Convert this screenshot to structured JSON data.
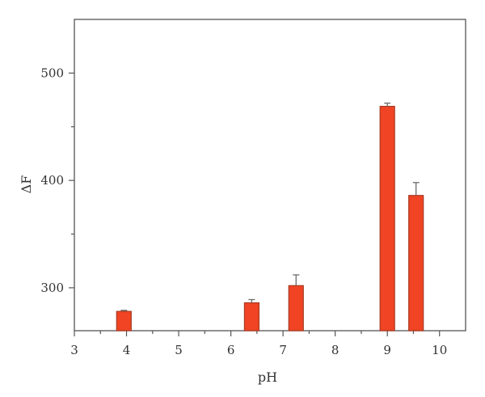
{
  "chart_data": {
    "type": "bar",
    "xlabel": "pH",
    "ylabel": "ΔF",
    "xlim": [
      3,
      10.5
    ],
    "ylim": [
      260,
      550
    ],
    "xticks": [
      3,
      4,
      5,
      6,
      7,
      8,
      9,
      10
    ],
    "yticks": [
      300,
      400,
      500
    ],
    "bar_color": "#f04424",
    "errorbar_color": "#7a7a7a",
    "series": [
      {
        "x": [
          3.95,
          6.4,
          7.25,
          9.0,
          9.55
        ],
        "values": [
          278,
          286,
          302,
          469,
          386
        ],
        "errors": [
          1,
          3,
          10,
          3,
          12
        ]
      }
    ]
  }
}
